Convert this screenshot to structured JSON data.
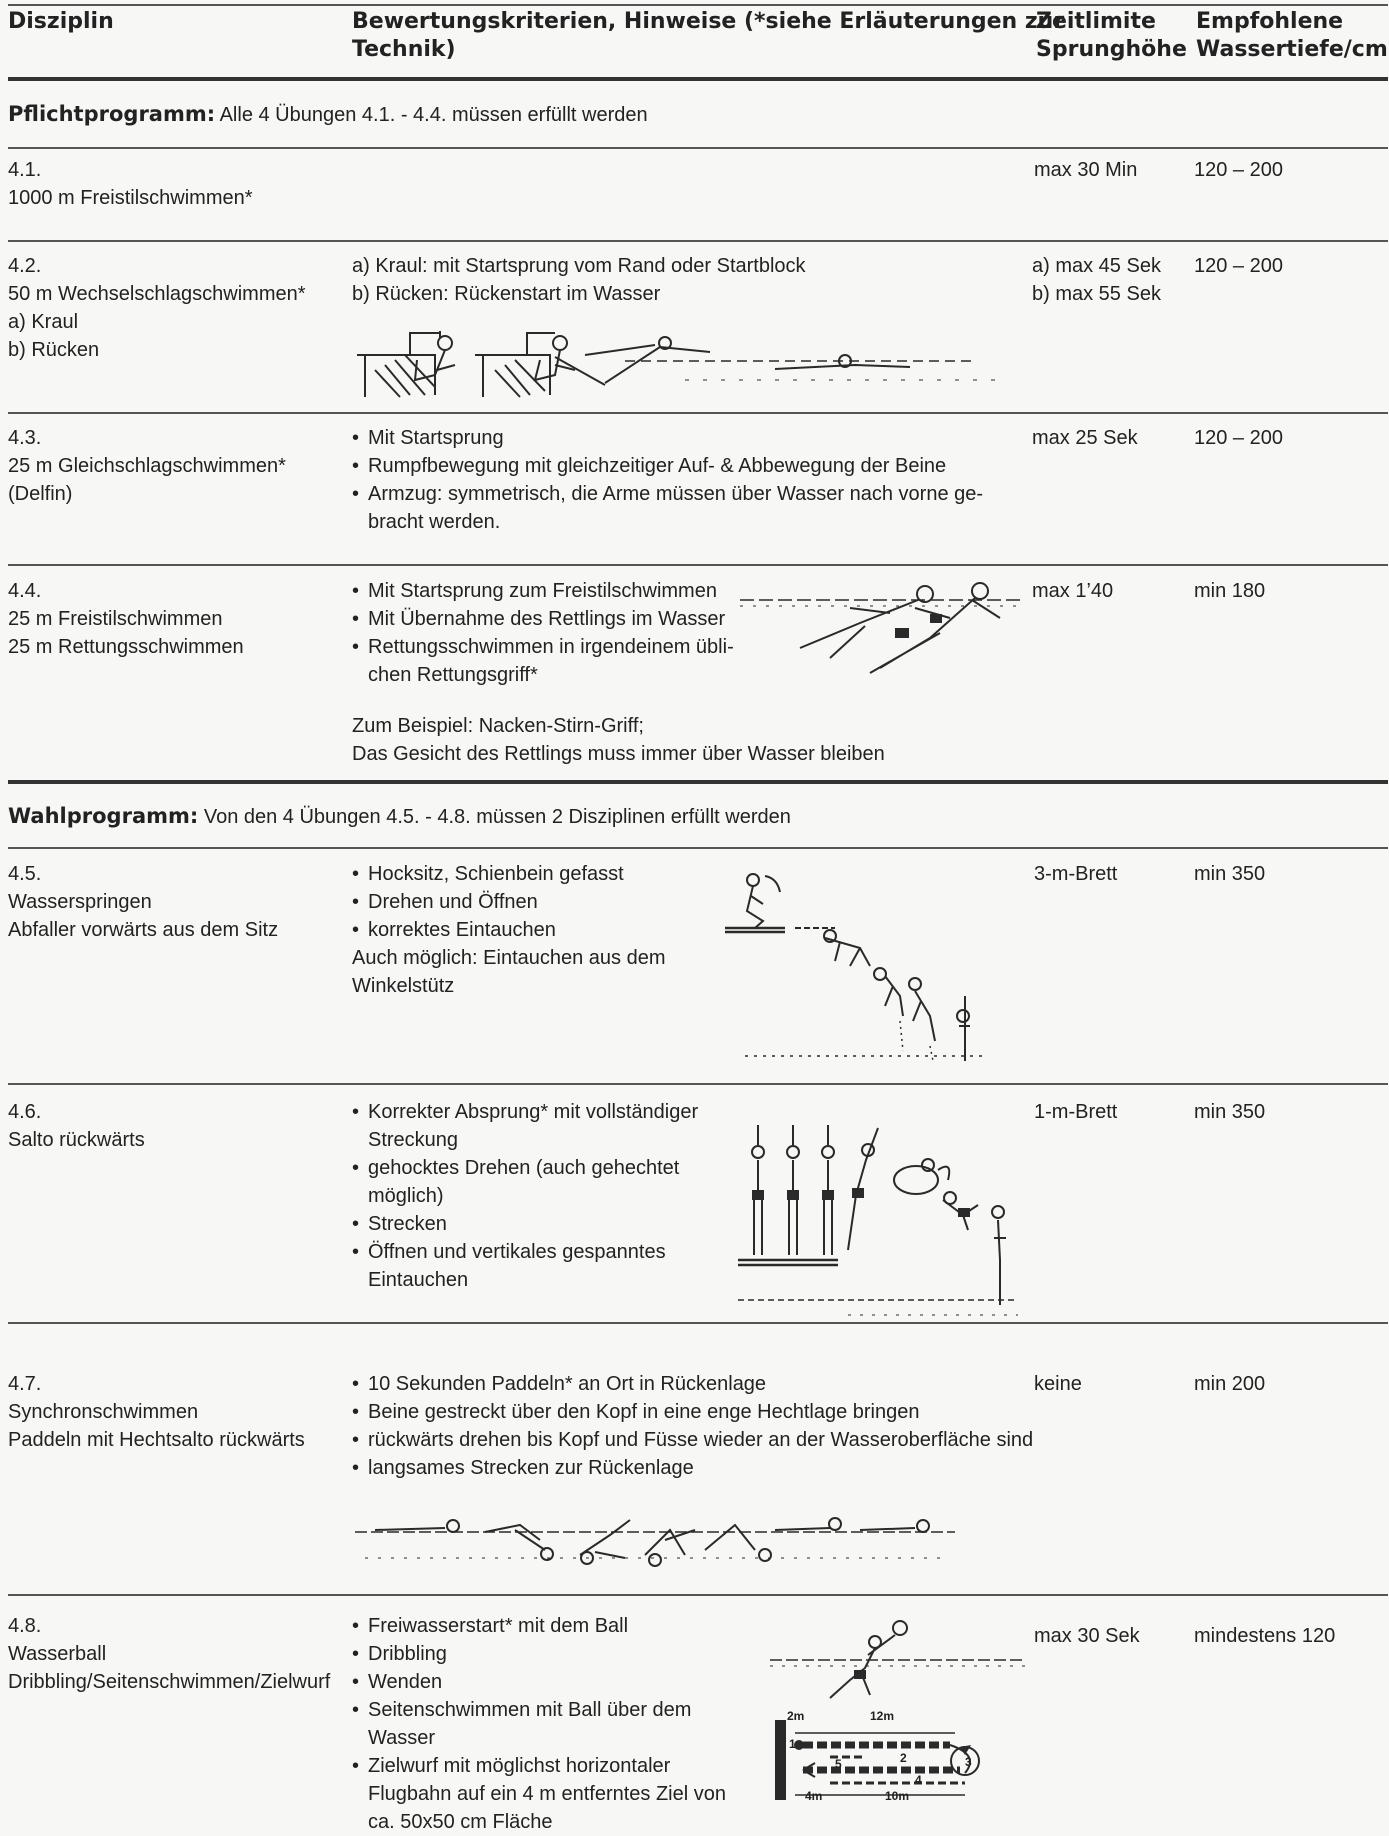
{
  "header": {
    "col1": "Disziplin",
    "col2_l1": "Bewertungskriterien, Hinweise (*siehe Erläuterungen zur",
    "col2_l2": "Technik)",
    "col3_l1": "Zeitlimite",
    "col3_l2": "Sprunghöhe",
    "col4_l1": "Empfohlene",
    "col4_l2": "Wassertiefe/cm"
  },
  "pflicht": {
    "label": "Pflichtprogramm:",
    "text": " Alle 4 Übungen 4.1. - 4.4. müssen erfüllt werden"
  },
  "wahl": {
    "label": "Wahlprogramm:",
    "text": " Von den 4 Übungen 4.5. - 4.8. müssen 2 Disziplinen erfüllt werden"
  },
  "r41": {
    "num": "4.1.",
    "name": "1000 m Freistilschwimmen*",
    "time": "max 30 Min",
    "depth": "120 – 200"
  },
  "r42": {
    "num": "4.2.",
    "name": "50 m Wechselschlagschwimmen*",
    "sub_a": "a) Kraul",
    "sub_b": "b) Rücken",
    "crit_a": "a) Kraul: mit Startsprung vom Rand oder Startblock",
    "crit_b": "b) Rücken: Rückenstart im Wasser",
    "time_a": "a) max 45 Sek",
    "time_b": "b) max 55 Sek",
    "depth": "120 – 200"
  },
  "r43": {
    "num": "4.3.",
    "name": "25 m Gleichschlagschwimmen*",
    "sub": "(Delfin)",
    "b1": "Mit Startsprung",
    "b2": "Rumpfbewegung mit gleichzeitiger Auf- & Abbewegung der Beine",
    "b3a": "Armzug: symmetrisch, die Arme müssen über Wasser nach vorne ge-",
    "b3b": "bracht werden.",
    "time": "max 25 Sek",
    "depth": "120 – 200"
  },
  "r44": {
    "num": "4.4.",
    "name1": "25 m Freistilschwimmen",
    "name2": "25 m Rettungsschwimmen",
    "b1": "Mit Startsprung zum Freistilschwimmen",
    "b2": "Mit Übernahme des Rettlings im Wasser",
    "b3a": "Rettungsschwimmen in irgendeinem übli-",
    "b3b": "chen Rettungsgriff*",
    "note1": "Zum Beispiel: Nacken-Stirn-Griff;",
    "note2": "Das Gesicht des Rettlings muss immer über Wasser bleiben",
    "time": "max 1’40",
    "depth": "min 180"
  },
  "r45": {
    "num": "4.5.",
    "name1": "Wasserspringen",
    "name2": "Abfaller vorwärts aus dem Sitz",
    "b1": "Hocksitz, Schienbein gefasst",
    "b2": "Drehen und Öffnen",
    "b3": "korrektes Eintauchen",
    "note1": "Auch möglich: Eintauchen aus dem",
    "note2": "Winkelstütz",
    "time": "3-m-Brett",
    "depth": "min 350"
  },
  "r46": {
    "num": "4.6.",
    "name": "Salto rückwärts",
    "b1a": "Korrekter Absprung* mit vollständiger",
    "b1b": "Streckung",
    "b2a": "gehocktes Drehen (auch gehechtet",
    "b2b": "möglich)",
    "b3": "Strecken",
    "b4a": "Öffnen und vertikales gespanntes",
    "b4b": "Eintauchen",
    "time": "1-m-Brett",
    "depth": "min 350"
  },
  "r47": {
    "num": "4.7.",
    "name1": "Synchronschwimmen",
    "name2": "Paddeln mit Hechtsalto rückwärts",
    "b1": "10 Sekunden Paddeln* an Ort in Rückenlage",
    "b2": "Beine gestreckt über den Kopf in eine enge Hechtlage bringen",
    "b3": "rückwärts drehen bis Kopf und Füsse wieder an der Wasseroberfläche sind",
    "b4": "langsames Strecken zur Rückenlage",
    "time": "keine",
    "depth": "min 200"
  },
  "r48": {
    "num": "4.8.",
    "name1": "Wasserball",
    "name2": "Dribbling/Seitenschwimmen/Zielwurf",
    "b1": "Freiwasserstart* mit dem Ball",
    "b2": "Dribbling",
    "b3": "Wenden",
    "b4a": "Seitenschwimmen mit Ball über dem",
    "b4b": "Wasser",
    "b5a": "Zielwurf mit möglichst horizontaler",
    "b5b": "Flugbahn auf ein 4 m entferntes Ziel von",
    "b5c": "ca. 50x50 cm Fläche",
    "time": "max 30 Sek",
    "depth": "mindestens 120",
    "diagram": {
      "l2m": "2m",
      "l12m": "12m",
      "l4m": "4m",
      "l10m": "10m",
      "n1": "1",
      "n2": "2",
      "n3": "3",
      "n4": "4",
      "n5": "5"
    }
  }
}
